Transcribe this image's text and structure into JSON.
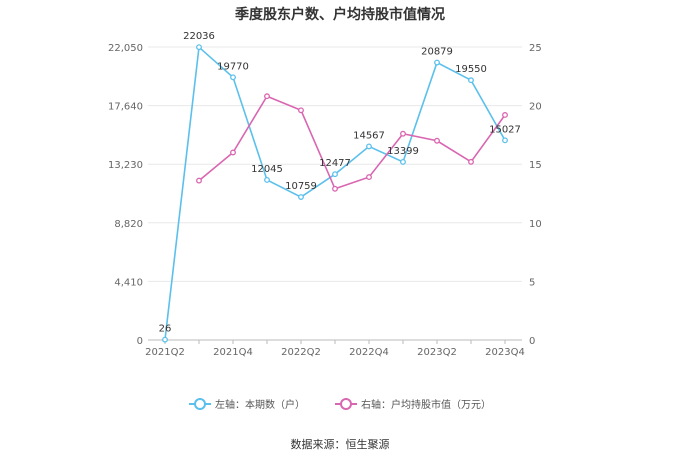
{
  "title": "季度股东户数、户均持股市值情况",
  "source": "数据来源：恒生聚源",
  "legend": {
    "left_label": "左轴：本期数（户）",
    "right_label": "右轴：户均持股市值（万元）"
  },
  "colors": {
    "left_series": "#5bc0eb",
    "right_series": "#d966b0",
    "grid": "#e8e8e8",
    "axis_text": "#666666"
  },
  "chart_data": {
    "type": "line",
    "categories": [
      "2021Q2",
      "2021Q3",
      "2021Q4",
      "2022Q1",
      "2022Q2",
      "2022Q3",
      "2022Q4",
      "2023Q1",
      "2023Q2",
      "2023Q3",
      "2023Q4"
    ],
    "x_tick_labels": [
      "2021Q2",
      "2021Q4",
      "2022Q2",
      "2022Q4",
      "2023Q2",
      "2023Q4"
    ],
    "left_axis": {
      "ylim": [
        0,
        22050
      ],
      "ticks": [
        "0",
        "4,410",
        "8,820",
        "13,230",
        "17,640",
        "22,050"
      ],
      "tick_values": [
        0,
        4410,
        8820,
        13230,
        17640,
        22050
      ]
    },
    "right_axis": {
      "ylim": [
        0,
        25
      ],
      "ticks": [
        "0",
        "5",
        "10",
        "15",
        "20",
        "25"
      ],
      "tick_values": [
        0,
        5,
        10,
        15,
        20,
        25
      ]
    },
    "series": [
      {
        "name": "左轴：本期数（户）",
        "axis": "left",
        "values": [
          26,
          22036,
          19770,
          12045,
          10759,
          12477,
          14567,
          13399,
          20879,
          19550,
          15027
        ],
        "labels": [
          "26",
          "22036",
          "19770",
          "12045",
          "10759",
          "12477",
          "14567",
          "13399",
          "20879",
          "19550",
          "15027"
        ]
      },
      {
        "name": "右轴：户均持股市值（万元）",
        "axis": "right",
        "values": [
          null,
          13.6,
          16.0,
          20.8,
          19.6,
          12.9,
          13.9,
          17.6,
          17.0,
          15.2,
          19.2
        ]
      }
    ],
    "grid": true,
    "legend_position": "bottom"
  }
}
